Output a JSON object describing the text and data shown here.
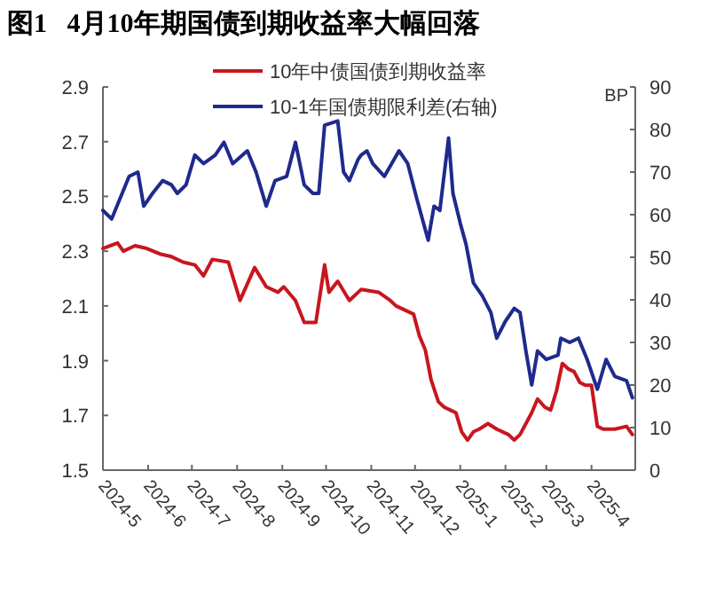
{
  "chart_data": {
    "type": "line",
    "title": "图1   4月10年期国债到期收益率大幅回落",
    "y2label": "BP",
    "legend": "top",
    "grid": false,
    "xlim": [
      "2024-05-01",
      "2025-05-01"
    ],
    "xticks": [
      {
        "value": "2024-05-01",
        "label": "2024-5"
      },
      {
        "value": "2024-06-01",
        "label": "2024-6"
      },
      {
        "value": "2024-07-01",
        "label": "2024-7"
      },
      {
        "value": "2024-08-01",
        "label": "2024-8"
      },
      {
        "value": "2024-09-01",
        "label": "2024-9"
      },
      {
        "value": "2024-10-01",
        "label": "2024-10"
      },
      {
        "value": "2024-11-01",
        "label": "2024-11"
      },
      {
        "value": "2024-12-01",
        "label": "2024-12"
      },
      {
        "value": "2025-01-01",
        "label": "2025-1"
      },
      {
        "value": "2025-02-01",
        "label": "2025-2"
      },
      {
        "value": "2025-03-01",
        "label": "2025-3"
      },
      {
        "value": "2025-04-01",
        "label": "2025-4"
      }
    ],
    "ylim": [
      1.5,
      2.9
    ],
    "yticks": [
      {
        "value": 1.5,
        "label": "1.5"
      },
      {
        "value": 1.7,
        "label": "1.7"
      },
      {
        "value": 1.9,
        "label": "1.9"
      },
      {
        "value": 2.1,
        "label": "2.1"
      },
      {
        "value": 2.3,
        "label": "2.3"
      },
      {
        "value": 2.5,
        "label": "2.5"
      },
      {
        "value": 2.7,
        "label": "2.7"
      },
      {
        "value": 2.9,
        "label": "2.9"
      }
    ],
    "y2lim": [
      0,
      90
    ],
    "y2ticks": [
      0,
      10,
      20,
      30,
      40,
      50,
      60,
      70,
      80,
      90
    ],
    "series": [
      {
        "name": "10年中债国债到期收益率",
        "color": "#c8161e",
        "x": [
          "2024-05-01",
          "2024-05-11",
          "2024-05-15",
          "2024-05-23",
          "2024-05-31",
          "2024-06-09",
          "2024-06-17",
          "2024-06-25",
          "2024-07-03",
          "2024-07-09",
          "2024-07-15",
          "2024-07-26",
          "2024-08-03",
          "2024-08-13",
          "2024-08-21",
          "2024-08-29",
          "2024-09-02",
          "2024-09-10",
          "2024-09-16",
          "2024-09-24",
          "2024-09-30",
          "2024-10-03",
          "2024-10-09",
          "2024-10-17",
          "2024-10-25",
          "2024-11-06",
          "2024-11-14",
          "2024-11-18",
          "2024-11-30",
          "2024-12-04",
          "2024-12-08",
          "2024-12-12",
          "2024-12-17",
          "2024-12-21",
          "2024-12-25",
          "2024-12-29",
          "2025-01-02",
          "2025-01-06",
          "2025-01-10",
          "2025-01-14",
          "2025-01-20",
          "2025-01-26",
          "2025-02-03",
          "2025-02-07",
          "2025-02-11",
          "2025-02-19",
          "2025-02-23",
          "2025-02-28",
          "2025-03-04",
          "2025-03-08",
          "2025-03-12",
          "2025-03-16",
          "2025-03-20",
          "2025-03-24",
          "2025-03-28",
          "2025-04-01",
          "2025-04-05",
          "2025-04-09",
          "2025-04-17",
          "2025-04-25",
          "2025-04-29"
        ],
        "values": [
          2.31,
          2.33,
          2.3,
          2.32,
          2.31,
          2.29,
          2.28,
          2.26,
          2.25,
          2.21,
          2.27,
          2.26,
          2.12,
          2.24,
          2.17,
          2.15,
          2.17,
          2.12,
          2.04,
          2.04,
          2.25,
          2.15,
          2.19,
          2.12,
          2.16,
          2.15,
          2.12,
          2.1,
          2.07,
          1.99,
          1.94,
          1.83,
          1.75,
          1.73,
          1.72,
          1.71,
          1.64,
          1.61,
          1.64,
          1.65,
          1.67,
          1.65,
          1.63,
          1.61,
          1.63,
          1.71,
          1.76,
          1.73,
          1.72,
          1.79,
          1.89,
          1.87,
          1.86,
          1.82,
          1.81,
          1.81,
          1.66,
          1.65,
          1.65,
          1.66,
          1.63
        ]
      },
      {
        "name": "10-1年国债期限利差(右轴)",
        "color": "#1f2a8c",
        "axis": "y2",
        "x": [
          "2024-05-01",
          "2024-05-07",
          "2024-05-13",
          "2024-05-19",
          "2024-05-25",
          "2024-05-29",
          "2024-06-04",
          "2024-06-11",
          "2024-06-17",
          "2024-06-21",
          "2024-06-27",
          "2024-07-03",
          "2024-07-09",
          "2024-07-17",
          "2024-07-23",
          "2024-07-29",
          "2024-08-08",
          "2024-08-14",
          "2024-08-21",
          "2024-08-27",
          "2024-09-04",
          "2024-09-10",
          "2024-09-16",
          "2024-09-22",
          "2024-09-26",
          "2024-09-30",
          "2024-10-09",
          "2024-10-13",
          "2024-10-17",
          "2024-10-23",
          "2024-10-25",
          "2024-10-29",
          "2024-11-02",
          "2024-11-10",
          "2024-11-20",
          "2024-11-26",
          "2024-12-02",
          "2024-12-06",
          "2024-12-10",
          "2024-12-14",
          "2024-12-18",
          "2024-12-24",
          "2024-12-27",
          "2025-01-01",
          "2025-01-05",
          "2025-01-10",
          "2025-01-16",
          "2025-01-22",
          "2025-01-26",
          "2025-02-01",
          "2025-02-07",
          "2025-02-11",
          "2025-02-15",
          "2025-02-19",
          "2025-02-23",
          "2025-03-01",
          "2025-03-09",
          "2025-03-11",
          "2025-03-17",
          "2025-03-23",
          "2025-03-29",
          "2025-04-05",
          "2025-04-11",
          "2025-04-17",
          "2025-04-25",
          "2025-04-29"
        ],
        "values": [
          61,
          59,
          64,
          69,
          70,
          62,
          65,
          68,
          67,
          65,
          67,
          74,
          72,
          74,
          77,
          72,
          75,
          70,
          62,
          68,
          69,
          77,
          67,
          65,
          65,
          81,
          82,
          70,
          68,
          73,
          74,
          75,
          72,
          69,
          75,
          72,
          64,
          59,
          54,
          62,
          61,
          78,
          65,
          58,
          53,
          44,
          41,
          37,
          31,
          35,
          38,
          37,
          28,
          20,
          28,
          26,
          27,
          31,
          30,
          31,
          26,
          19,
          26,
          22,
          21,
          17
        ]
      }
    ]
  }
}
